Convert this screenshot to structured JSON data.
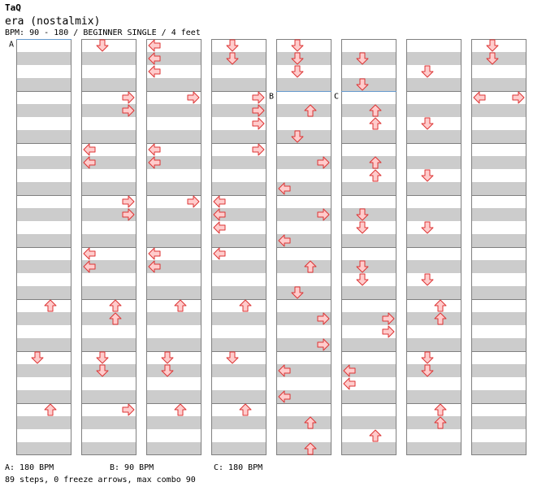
{
  "header": {
    "artist": "TaQ",
    "title": "era (nostalmix)",
    "info": "BPM: 90 - 180 / BEGINNER SINGLE / 4 feet"
  },
  "footer": {
    "bpm_a": "A: 180 BPM",
    "bpm_b": "B: 90 BPM",
    "bpm_c": "C: 180 BPM",
    "summary": "89 steps, 0 freeze arrows, max combo 90"
  },
  "colors": {
    "stripe": "#cccccc",
    "measure_line": "#808080",
    "bpm_line": "#6699cc",
    "arrow_fill": "#ffcccc",
    "arrow_stroke": "#dd3333"
  },
  "bpm_markers": [
    {
      "label": "A",
      "column": 0,
      "measure": 0,
      "beat": 0
    },
    {
      "label": "B",
      "column": 4,
      "measure": 1,
      "beat": 0
    },
    {
      "label": "C",
      "column": 5,
      "measure": 1,
      "beat": 0
    }
  ],
  "steps": [
    {
      "c": 0,
      "m": 5,
      "b": 0,
      "l": "U"
    },
    {
      "c": 0,
      "m": 6,
      "b": 0,
      "l": "D"
    },
    {
      "c": 0,
      "m": 7,
      "b": 0,
      "l": "U"
    },
    {
      "c": 1,
      "m": 0,
      "b": 0,
      "l": "D"
    },
    {
      "c": 1,
      "m": 1,
      "b": 0,
      "l": "R"
    },
    {
      "c": 1,
      "m": 1,
      "b": 1,
      "l": "R"
    },
    {
      "c": 1,
      "m": 2,
      "b": 0,
      "l": "L"
    },
    {
      "c": 1,
      "m": 2,
      "b": 1,
      "l": "L"
    },
    {
      "c": 1,
      "m": 3,
      "b": 0,
      "l": "R"
    },
    {
      "c": 1,
      "m": 3,
      "b": 1,
      "l": "R"
    },
    {
      "c": 1,
      "m": 4,
      "b": 0,
      "l": "L"
    },
    {
      "c": 1,
      "m": 4,
      "b": 1,
      "l": "L"
    },
    {
      "c": 1,
      "m": 5,
      "b": 0,
      "l": "U"
    },
    {
      "c": 1,
      "m": 5,
      "b": 1,
      "l": "U"
    },
    {
      "c": 1,
      "m": 6,
      "b": 0,
      "l": "D"
    },
    {
      "c": 1,
      "m": 6,
      "b": 1,
      "l": "D"
    },
    {
      "c": 1,
      "m": 7,
      "b": 0,
      "l": "R"
    },
    {
      "c": 2,
      "m": 0,
      "b": 0,
      "l": "L"
    },
    {
      "c": 2,
      "m": 0,
      "b": 1,
      "l": "L"
    },
    {
      "c": 2,
      "m": 0,
      "b": 2,
      "l": "L"
    },
    {
      "c": 2,
      "m": 1,
      "b": 0,
      "l": "R"
    },
    {
      "c": 2,
      "m": 2,
      "b": 0,
      "l": "L"
    },
    {
      "c": 2,
      "m": 2,
      "b": 1,
      "l": "L"
    },
    {
      "c": 2,
      "m": 3,
      "b": 0,
      "l": "R"
    },
    {
      "c": 2,
      "m": 4,
      "b": 0,
      "l": "L"
    },
    {
      "c": 2,
      "m": 4,
      "b": 1,
      "l": "L"
    },
    {
      "c": 2,
      "m": 5,
      "b": 0,
      "l": "U"
    },
    {
      "c": 2,
      "m": 6,
      "b": 0,
      "l": "D"
    },
    {
      "c": 2,
      "m": 6,
      "b": 1,
      "l": "D"
    },
    {
      "c": 2,
      "m": 7,
      "b": 0,
      "l": "U"
    },
    {
      "c": 3,
      "m": 0,
      "b": 0,
      "l": "D"
    },
    {
      "c": 3,
      "m": 0,
      "b": 1,
      "l": "D"
    },
    {
      "c": 3,
      "m": 1,
      "b": 0,
      "l": "R"
    },
    {
      "c": 3,
      "m": 1,
      "b": 1,
      "l": "R"
    },
    {
      "c": 3,
      "m": 1,
      "b": 2,
      "l": "R"
    },
    {
      "c": 3,
      "m": 2,
      "b": 0,
      "l": "R"
    },
    {
      "c": 3,
      "m": 3,
      "b": 0,
      "l": "L"
    },
    {
      "c": 3,
      "m": 3,
      "b": 1,
      "l": "L"
    },
    {
      "c": 3,
      "m": 3,
      "b": 2,
      "l": "L"
    },
    {
      "c": 3,
      "m": 4,
      "b": 0,
      "l": "L"
    },
    {
      "c": 3,
      "m": 5,
      "b": 0,
      "l": "U"
    },
    {
      "c": 3,
      "m": 6,
      "b": 0,
      "l": "D"
    },
    {
      "c": 3,
      "m": 7,
      "b": 0,
      "l": "U"
    },
    {
      "c": 4,
      "m": 0,
      "b": 0,
      "l": "D"
    },
    {
      "c": 4,
      "m": 0,
      "b": 1,
      "l": "D"
    },
    {
      "c": 4,
      "m": 0,
      "b": 2,
      "l": "D"
    },
    {
      "c": 4,
      "m": 1,
      "b": 1,
      "l": "U"
    },
    {
      "c": 4,
      "m": 1,
      "b": 3,
      "l": "D"
    },
    {
      "c": 4,
      "m": 2,
      "b": 1,
      "l": "R"
    },
    {
      "c": 4,
      "m": 2,
      "b": 3,
      "l": "L"
    },
    {
      "c": 4,
      "m": 3,
      "b": 1,
      "l": "R"
    },
    {
      "c": 4,
      "m": 3,
      "b": 3,
      "l": "L"
    },
    {
      "c": 4,
      "m": 4,
      "b": 1,
      "l": "U"
    },
    {
      "c": 4,
      "m": 4,
      "b": 3,
      "l": "D"
    },
    {
      "c": 4,
      "m": 5,
      "b": 1,
      "l": "R"
    },
    {
      "c": 4,
      "m": 5,
      "b": 3,
      "l": "R"
    },
    {
      "c": 4,
      "m": 6,
      "b": 1,
      "l": "L"
    },
    {
      "c": 4,
      "m": 6,
      "b": 3,
      "l": "L"
    },
    {
      "c": 4,
      "m": 7,
      "b": 1,
      "l": "U"
    },
    {
      "c": 4,
      "m": 7,
      "b": 3,
      "l": "U"
    },
    {
      "c": 5,
      "m": 0,
      "b": 1,
      "l": "D"
    },
    {
      "c": 5,
      "m": 0,
      "b": 3,
      "l": "D"
    },
    {
      "c": 5,
      "m": 1,
      "b": 1,
      "l": "U"
    },
    {
      "c": 5,
      "m": 1,
      "b": 2,
      "l": "U"
    },
    {
      "c": 5,
      "m": 2,
      "b": 1,
      "l": "U"
    },
    {
      "c": 5,
      "m": 2,
      "b": 2,
      "l": "U"
    },
    {
      "c": 5,
      "m": 3,
      "b": 1,
      "l": "D"
    },
    {
      "c": 5,
      "m": 3,
      "b": 2,
      "l": "D"
    },
    {
      "c": 5,
      "m": 4,
      "b": 1,
      "l": "D"
    },
    {
      "c": 5,
      "m": 4,
      "b": 2,
      "l": "D"
    },
    {
      "c": 5,
      "m": 5,
      "b": 1,
      "l": "R"
    },
    {
      "c": 5,
      "m": 5,
      "b": 2,
      "l": "R"
    },
    {
      "c": 5,
      "m": 6,
      "b": 1,
      "l": "L"
    },
    {
      "c": 5,
      "m": 6,
      "b": 2,
      "l": "L"
    },
    {
      "c": 5,
      "m": 7,
      "b": 2,
      "l": "U"
    },
    {
      "c": 6,
      "m": 0,
      "b": 2,
      "l": "D"
    },
    {
      "c": 6,
      "m": 1,
      "b": 2,
      "l": "D"
    },
    {
      "c": 6,
      "m": 2,
      "b": 2,
      "l": "D"
    },
    {
      "c": 6,
      "m": 3,
      "b": 2,
      "l": "D"
    },
    {
      "c": 6,
      "m": 4,
      "b": 2,
      "l": "D"
    },
    {
      "c": 6,
      "m": 5,
      "b": 0,
      "l": "U"
    },
    {
      "c": 6,
      "m": 5,
      "b": 1,
      "l": "U"
    },
    {
      "c": 6,
      "m": 6,
      "b": 0,
      "l": "D"
    },
    {
      "c": 6,
      "m": 6,
      "b": 1,
      "l": "D"
    },
    {
      "c": 6,
      "m": 7,
      "b": 0,
      "l": "U"
    },
    {
      "c": 6,
      "m": 7,
      "b": 1,
      "l": "U"
    },
    {
      "c": 7,
      "m": 0,
      "b": 0,
      "l": "D"
    },
    {
      "c": 7,
      "m": 0,
      "b": 1,
      "l": "D"
    },
    {
      "c": 7,
      "m": 1,
      "b": 0,
      "l": "L"
    },
    {
      "c": 7,
      "m": 1,
      "b": 0,
      "l": "R"
    }
  ]
}
